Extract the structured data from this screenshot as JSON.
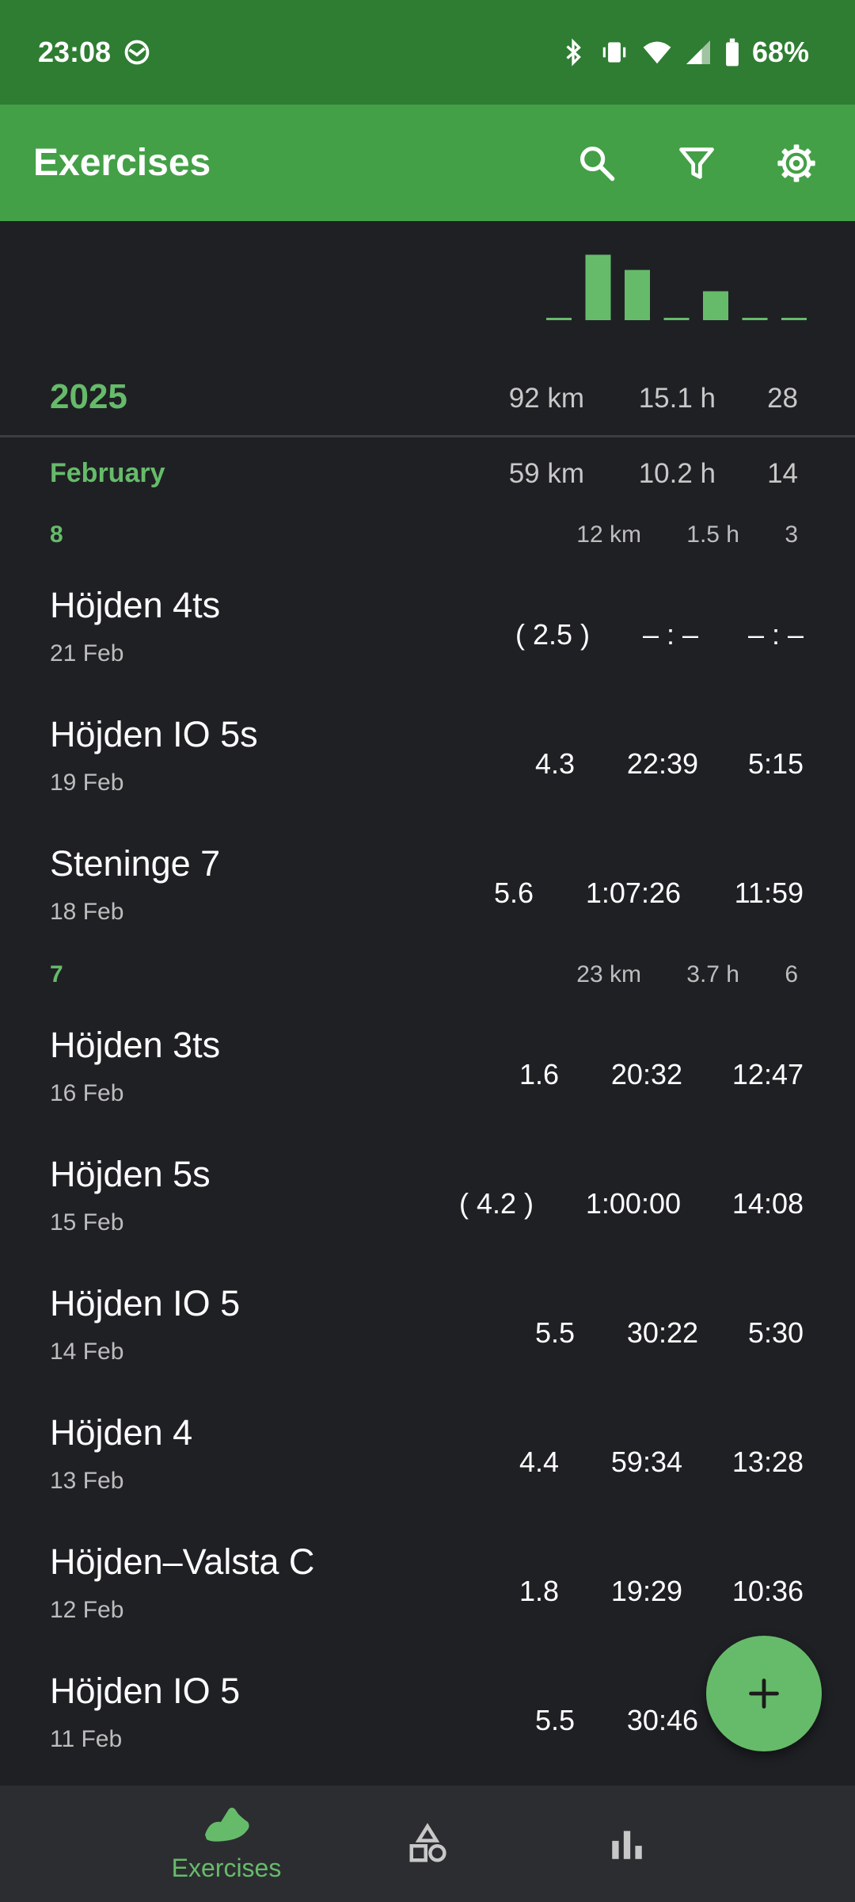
{
  "status_bar": {
    "time": "23:08",
    "battery": "68%"
  },
  "app_bar": {
    "title": "Exercises",
    "icons": [
      "search-icon",
      "filter-icon",
      "settings-icon"
    ]
  },
  "mini_chart": {
    "values": [
      0,
      0.86,
      0.66,
      0,
      0.38,
      0,
      0
    ],
    "color": "#66bb6a"
  },
  "year": {
    "label": "2025",
    "distance": "92 km",
    "duration": "15.1 h",
    "count": "28"
  },
  "month": {
    "label": "February",
    "distance": "59 km",
    "duration": "10.2 h",
    "count": "14"
  },
  "weeks": [
    {
      "label": "8",
      "distance": "12 km",
      "duration": "1.5 h",
      "count": "3",
      "exercises": [
        {
          "name": "Höjden 4ts",
          "date": "21 Feb",
          "distance": "( 2.5 )",
          "time": "– : –",
          "pace": "– : –"
        },
        {
          "name": "Höjden IO 5s",
          "date": "19 Feb",
          "distance": "4.3",
          "time": "22:39",
          "pace": "5:15"
        },
        {
          "name": "Steninge 7",
          "date": "18 Feb",
          "distance": "5.6",
          "time": "1:07:26",
          "pace": "11:59"
        }
      ]
    },
    {
      "label": "7",
      "distance": "23 km",
      "duration": "3.7 h",
      "count": "6",
      "exercises": [
        {
          "name": "Höjden 3ts",
          "date": "16 Feb",
          "distance": "1.6",
          "time": "20:32",
          "pace": "12:47"
        },
        {
          "name": "Höjden 5s",
          "date": "15 Feb",
          "distance": "( 4.2 )",
          "time": "1:00:00",
          "pace": "14:08"
        },
        {
          "name": "Höjden IO 5",
          "date": "14 Feb",
          "distance": "5.5",
          "time": "30:22",
          "pace": "5:30"
        },
        {
          "name": "Höjden 4",
          "date": "13 Feb",
          "distance": "4.4",
          "time": "59:34",
          "pace": "13:28"
        },
        {
          "name": "Höjden–Valsta C",
          "date": "12 Feb",
          "distance": "1.8",
          "time": "19:29",
          "pace": "10:36"
        },
        {
          "name": "Höjden IO 5",
          "date": "11 Feb",
          "distance": "5.5",
          "time": "30:46",
          "pace": ""
        }
      ]
    }
  ],
  "fab": {
    "icon": "plus-icon"
  },
  "bottom_nav": {
    "items": [
      {
        "label": "Exercises",
        "icon": "shoe-icon",
        "active": true
      },
      {
        "label": "",
        "icon": "shapes-icon",
        "active": false
      },
      {
        "label": "",
        "icon": "bar-chart-icon",
        "active": false
      }
    ]
  }
}
